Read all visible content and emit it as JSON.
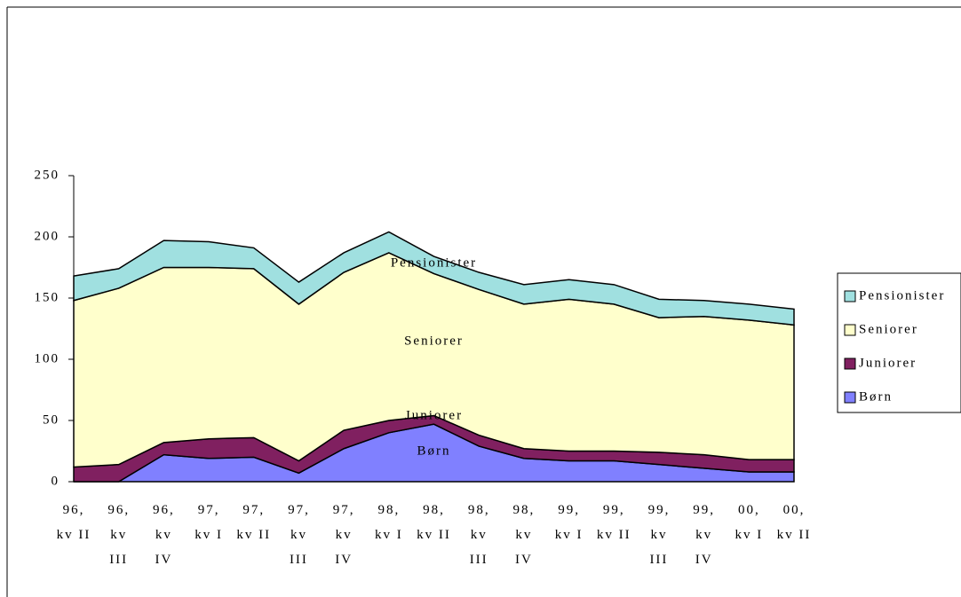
{
  "chart_data": {
    "type": "stacked-area",
    "categories": [
      "96, kv II",
      "96, kv III",
      "96, kv IV",
      "97, kv I",
      "97, kv II",
      "97, kv III",
      "97, kv IV",
      "98, kv I",
      "98, kv II",
      "98, kv III",
      "98, kv IV",
      "99, kv I",
      "99, kv II",
      "99, kv III",
      "99, kv IV",
      "00, kv I",
      "00, kv II"
    ],
    "series": [
      {
        "name": "Børn",
        "color": "#8080ff",
        "values": [
          0,
          0,
          22,
          19,
          20,
          7,
          27,
          40,
          47,
          29,
          19,
          17,
          17,
          14,
          11,
          8,
          8
        ]
      },
      {
        "name": "Juniorer",
        "color": "#802060",
        "values": [
          12,
          14,
          10,
          16,
          16,
          10,
          15,
          10,
          7,
          9,
          8,
          8,
          8,
          10,
          11,
          10,
          10
        ]
      },
      {
        "name": "Seniorer",
        "color": "#ffffcc",
        "values": [
          136,
          144,
          143,
          140,
          138,
          128,
          129,
          137,
          116,
          119,
          118,
          124,
          120,
          110,
          113,
          114,
          110
        ]
      },
      {
        "name": "Pensionister",
        "color": "#a0e0e0",
        "values": [
          20,
          16,
          22,
          21,
          17,
          18,
          16,
          17,
          14,
          14,
          16,
          16,
          16,
          15,
          13,
          13,
          13
        ]
      }
    ],
    "ylim": [
      0,
      250
    ],
    "yticks": [
      0,
      50,
      100,
      150,
      200,
      250
    ],
    "legend": "right"
  }
}
